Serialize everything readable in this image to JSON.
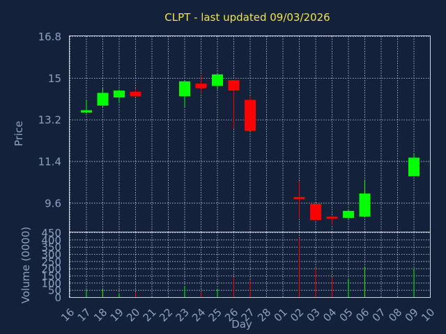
{
  "chart_data": {
    "type": "candlestick",
    "title": "CLPT - last updated 09/03/2026",
    "colors": {
      "background": "#13223a",
      "up": "#00ff00",
      "down": "#ff0000",
      "title": "#f0e24a",
      "axis_text": "#8ca2c0",
      "grid": "#d0d6e0"
    },
    "xlabel": "Day",
    "x_ticks": [
      "16",
      "17",
      "18",
      "19",
      "20",
      "21",
      "22",
      "23",
      "24",
      "25",
      "26",
      "27",
      "28",
      "01",
      "02",
      "03",
      "04",
      "05",
      "06",
      "07",
      "08",
      "09",
      "10"
    ],
    "price_panel": {
      "ylabel": "Price",
      "ylim": [
        8.35,
        16.8
      ],
      "y_ticks": [
        "16.8",
        "15",
        "13.2",
        "11.4",
        "9.6"
      ]
    },
    "volume_panel": {
      "ylabel": "Volume (0000)",
      "ylim": [
        0,
        450
      ],
      "y_ticks": [
        "450",
        "400",
        "350",
        "300",
        "250",
        "200",
        "150",
        "100",
        "50",
        "0"
      ]
    },
    "candles": [
      {
        "day": "17",
        "open": 13.5,
        "high": 14.05,
        "low": 13.45,
        "close": 13.6,
        "volume": 50
      },
      {
        "day": "18",
        "open": 13.8,
        "high": 14.55,
        "low": 13.75,
        "close": 14.35,
        "volume": 55
      },
      {
        "day": "19",
        "open": 14.15,
        "high": 14.5,
        "low": 13.9,
        "close": 14.45,
        "volume": 25
      },
      {
        "day": "20",
        "open": 14.4,
        "high": 14.55,
        "low": 14.2,
        "close": 14.2,
        "volume": 35
      },
      {
        "day": "23",
        "open": 14.2,
        "high": 14.85,
        "low": 13.75,
        "close": 14.85,
        "volume": 75
      },
      {
        "day": "24",
        "open": 14.75,
        "high": 15.1,
        "low": 14.35,
        "close": 14.55,
        "volume": 40
      },
      {
        "day": "25",
        "open": 14.65,
        "high": 15.2,
        "low": 14.5,
        "close": 15.15,
        "volume": 60
      },
      {
        "day": "26",
        "open": 14.9,
        "high": 14.9,
        "low": 12.8,
        "close": 14.45,
        "volume": 140
      },
      {
        "day": "27",
        "open": 14.05,
        "high": 14.2,
        "low": 12.7,
        "close": 12.7,
        "volume": 120
      },
      {
        "day": "02",
        "open": 9.85,
        "high": 10.55,
        "low": 8.95,
        "close": 9.75,
        "volume": 410
      },
      {
        "day": "03",
        "open": 9.55,
        "high": 9.55,
        "low": 8.85,
        "close": 8.85,
        "volume": 200
      },
      {
        "day": "04",
        "open": 9.0,
        "high": 9.05,
        "low": 8.65,
        "close": 8.95,
        "volume": 135
      },
      {
        "day": "05",
        "open": 8.95,
        "high": 9.3,
        "low": 8.85,
        "close": 9.25,
        "volume": 125
      },
      {
        "day": "06",
        "open": 9.0,
        "high": 10.6,
        "low": 9.0,
        "close": 10.0,
        "volume": 215
      },
      {
        "day": "09",
        "open": 10.75,
        "high": 11.7,
        "low": 10.75,
        "close": 11.55,
        "volume": 200
      }
    ]
  }
}
